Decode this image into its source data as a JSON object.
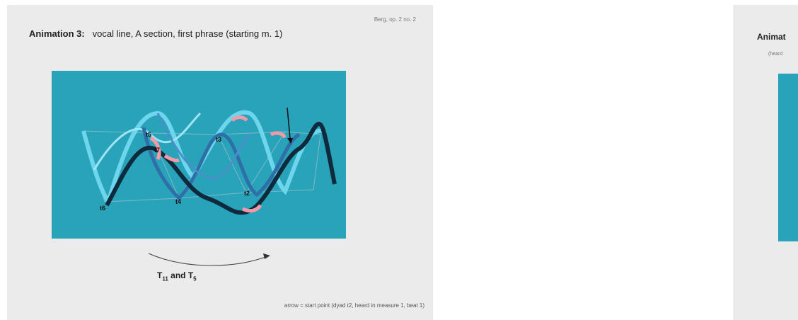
{
  "slide_main": {
    "credit": "Berg, op. 2 no. 2",
    "title_bold": "Animation 3:",
    "title_rest": "vocal line, A section, first phrase (starting m. 1)",
    "point_labels": [
      "t5",
      "t7",
      "t3",
      "t4",
      "t2",
      "t6"
    ],
    "transform": {
      "t": "T",
      "sub1": "11",
      "and": "and T",
      "sub2": "5"
    },
    "footnote": "arrow = start point (dyad t2, heard in measure 1, beat 1)",
    "colors": {
      "panel": "#29a3ba",
      "slide": "#ebebeb"
    }
  },
  "slide_next": {
    "title": "Animat",
    "subtitle": "(heard"
  }
}
